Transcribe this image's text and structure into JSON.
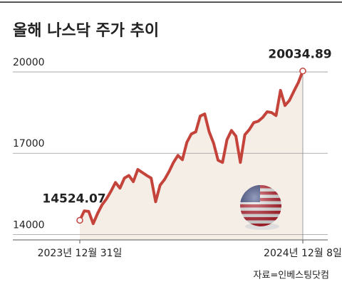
{
  "chart_data": {
    "type": "line",
    "title": "올해 나스닥 주가 추이",
    "source": "자료=인베스팅닷컴",
    "categories": [
      "2023년 12월 31일",
      null,
      null,
      null,
      null,
      null,
      null,
      null,
      null,
      null,
      null,
      null,
      null,
      null,
      null,
      null,
      null,
      null,
      null,
      null,
      null,
      null,
      null,
      null,
      null,
      null,
      null,
      null,
      null,
      null,
      null,
      null,
      null,
      null,
      null,
      null,
      null,
      null,
      null,
      null,
      null,
      null,
      null,
      null,
      null,
      null,
      null,
      null,
      null,
      null,
      "2024년 12월 8일"
    ],
    "values": [
      14524.07,
      14870,
      14850,
      14400,
      14780,
      15100,
      15320,
      15600,
      15920,
      15710,
      16080,
      16180,
      15950,
      16400,
      16290,
      16180,
      16080,
      15210,
      15820,
      16030,
      16320,
      16660,
      16920,
      16760,
      17400,
      17710,
      17790,
      18370,
      18450,
      17790,
      17370,
      16740,
      16660,
      17500,
      17840,
      17630,
      16660,
      17680,
      17870,
      18130,
      18180,
      18320,
      18530,
      18500,
      18390,
      19320,
      18760,
      18950,
      19290,
      19610,
      20034.89
    ],
    "color": "#c4433a",
    "fill": "#f4eee7",
    "ylim": [
      13800,
      21000
    ],
    "yticks": [
      14000,
      17000,
      20000
    ],
    "grid": true
  }
}
